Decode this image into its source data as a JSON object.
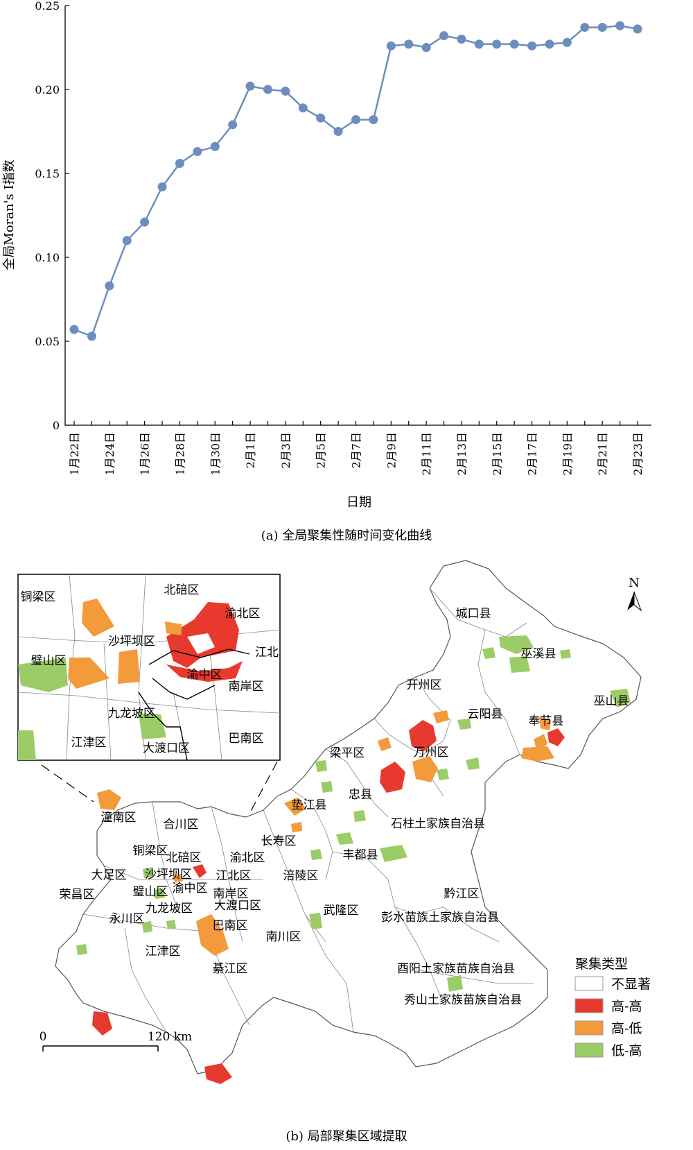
{
  "figure_a": {
    "caption": "(a) 全局聚集性随时间变化曲线"
  },
  "figure_b": {
    "caption": "(b) 局部聚集区域提取",
    "north": "N",
    "scale_zero": "0",
    "scale_end": "120 km",
    "legend": {
      "title": "聚集类型",
      "items": [
        {
          "label": "不显著",
          "color": "#ffffff"
        },
        {
          "label": "高-高",
          "color": "#e8392e"
        },
        {
          "label": "高-低",
          "color": "#f39a3a"
        },
        {
          "label": "低-高",
          "color": "#9ccc68"
        }
      ]
    },
    "inset_labels": [
      "铜梁区",
      "北碚区",
      "渝北区",
      "沙坪坝区",
      "江北",
      "璧山区",
      "渝中区",
      "南岸区",
      "九龙坡区",
      "江津区",
      "大渡口区",
      "巴南区"
    ],
    "main_labels": [
      "城口县",
      "巫溪县",
      "巫山县",
      "开州区",
      "云阳县",
      "奉节县",
      "万州区",
      "梁平区",
      "忠县",
      "垫江县",
      "石柱土家族自治县",
      "潼南区",
      "合川区",
      "长寿区",
      "丰都县",
      "铜梁区",
      "北碚区",
      "渝北区",
      "大足区",
      "沙坪坝区",
      "江北区",
      "涪陵区",
      "荣昌区",
      "璧山区",
      "渝中区",
      "南岸区",
      "黔江区",
      "九龙坡区",
      "大渡口区",
      "武隆区",
      "永川区",
      "巴南区",
      "彭水苗族土家族自治县",
      "南川区",
      "江津区",
      "綦江区",
      "酉阳土家族苗族自治县",
      "秀山土家族苗族自治县"
    ]
  },
  "chart_data": {
    "type": "line",
    "xlabel": "日期",
    "ylabel": "全局Moran's I指数",
    "ylim": [
      0,
      0.25
    ],
    "yticks": [
      "0",
      "0.05",
      "0.10",
      "0.15",
      "0.20",
      "0.25"
    ],
    "x": [
      "1月22日",
      "1月23日",
      "1月24日",
      "1月25日",
      "1月26日",
      "1月27日",
      "1月28日",
      "1月29日",
      "1月30日",
      "1月31日",
      "2月1日",
      "2月2日",
      "2月3日",
      "2月4日",
      "2月5日",
      "2月6日",
      "2月7日",
      "2月8日",
      "2月9日",
      "2月10日",
      "2月11日",
      "2月12日",
      "2月13日",
      "2月14日",
      "2月15日",
      "2月16日",
      "2月17日",
      "2月18日",
      "2月19日",
      "2月20日",
      "2月21日",
      "2月22日",
      "2月23日"
    ],
    "xticks": [
      "1月22日",
      "1月24日",
      "1月26日",
      "1月28日",
      "1月30日",
      "2月1日",
      "2月3日",
      "2月5日",
      "2月7日",
      "2月9日",
      "2月11日",
      "2月13日",
      "2月15日",
      "2月17日",
      "2月19日",
      "2月21日",
      "2月23日"
    ],
    "values": [
      0.057,
      0.053,
      0.083,
      0.11,
      0.121,
      0.142,
      0.156,
      0.163,
      0.166,
      0.179,
      0.202,
      0.2,
      0.199,
      0.189,
      0.183,
      0.175,
      0.182,
      0.182,
      0.226,
      0.227,
      0.225,
      0.232,
      0.23,
      0.227,
      0.227,
      0.227,
      0.226,
      0.227,
      0.228,
      0.237,
      0.237,
      0.238,
      0.236
    ],
    "color": "#6c8ebf",
    "grid": false
  }
}
